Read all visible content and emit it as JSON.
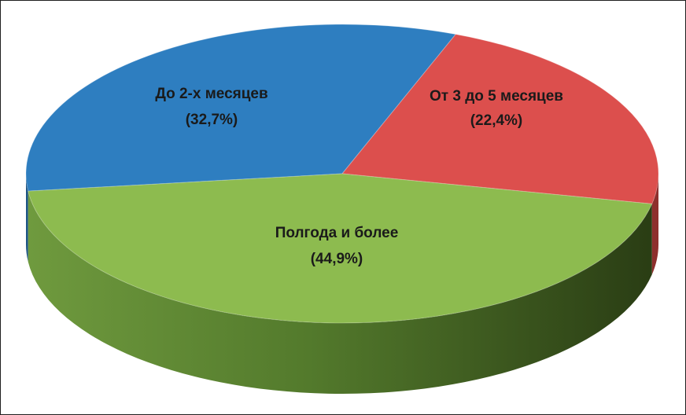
{
  "chart_data": {
    "type": "pie",
    "style": "3d",
    "title": "",
    "legend": "none",
    "slices": [
      {
        "label": "До 2-х месяцев",
        "pct_label": "(32,7%)",
        "value": 32.7,
        "color": "#2e7ec0",
        "dark": "#1d5584"
      },
      {
        "label": "От 3 до 5 месяцев",
        "pct_label": "(22,4%)",
        "value": 22.4,
        "color": "#dc4f4d",
        "dark": "#8e2f2d"
      },
      {
        "label": "Полгода и более",
        "pct_label": "(44,9%)",
        "value": 44.9,
        "color": "#8dbb4f",
        "dark": "#4a6628"
      }
    ]
  }
}
